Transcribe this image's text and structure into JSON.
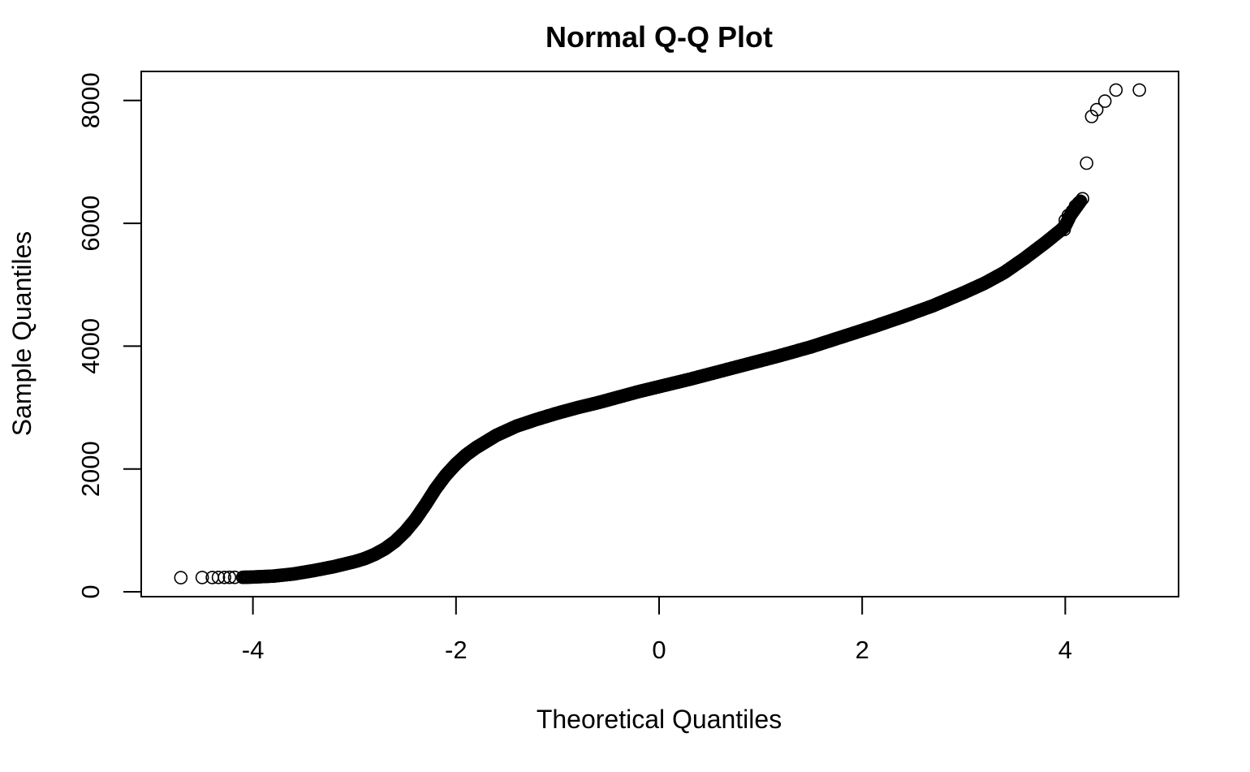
{
  "chart_data": {
    "type": "scatter",
    "title": "Normal Q-Q Plot",
    "xlabel": "Theoretical Quantiles",
    "ylabel": "Sample Quantiles",
    "xlim": [
      -5.1,
      5.1
    ],
    "ylim": [
      -70,
      8500
    ],
    "xticks": [
      -4,
      -2,
      0,
      2,
      4
    ],
    "xtick_labels": [
      "-4",
      "-2",
      "0",
      "2",
      "4"
    ],
    "yticks": [
      0,
      2000,
      4000,
      6000,
      8000
    ],
    "ytick_labels": [
      "0",
      "2000",
      "4000",
      "6000",
      "8000"
    ],
    "grid": false,
    "marker": "open-circle",
    "curve": [
      [
        -4.1,
        235
      ],
      [
        -4.0,
        240
      ],
      [
        -3.8,
        255
      ],
      [
        -3.6,
        290
      ],
      [
        -3.4,
        345
      ],
      [
        -3.2,
        410
      ],
      [
        -3.0,
        490
      ],
      [
        -2.9,
        540
      ],
      [
        -2.8,
        610
      ],
      [
        -2.7,
        700
      ],
      [
        -2.6,
        820
      ],
      [
        -2.5,
        980
      ],
      [
        -2.4,
        1180
      ],
      [
        -2.3,
        1420
      ],
      [
        -2.2,
        1680
      ],
      [
        -2.1,
        1900
      ],
      [
        -2.0,
        2080
      ],
      [
        -1.9,
        2230
      ],
      [
        -1.8,
        2350
      ],
      [
        -1.6,
        2550
      ],
      [
        -1.4,
        2700
      ],
      [
        -1.2,
        2810
      ],
      [
        -1.0,
        2910
      ],
      [
        -0.8,
        3000
      ],
      [
        -0.6,
        3080
      ],
      [
        -0.4,
        3170
      ],
      [
        -0.2,
        3260
      ],
      [
        0.0,
        3340
      ],
      [
        0.3,
        3460
      ],
      [
        0.6,
        3590
      ],
      [
        0.9,
        3720
      ],
      [
        1.2,
        3850
      ],
      [
        1.5,
        3990
      ],
      [
        1.8,
        4150
      ],
      [
        2.1,
        4310
      ],
      [
        2.4,
        4480
      ],
      [
        2.7,
        4660
      ],
      [
        3.0,
        4870
      ],
      [
        3.2,
        5020
      ],
      [
        3.4,
        5200
      ],
      [
        3.6,
        5430
      ],
      [
        3.8,
        5680
      ],
      [
        3.95,
        5880
      ],
      [
        4.0,
        5960
      ],
      [
        4.05,
        6130
      ],
      [
        4.15,
        6360
      ]
    ],
    "outliers": [
      [
        -4.71,
        230
      ],
      [
        -4.5,
        232
      ],
      [
        -4.4,
        233
      ],
      [
        -4.34,
        234
      ],
      [
        -4.28,
        234
      ],
      [
        -4.23,
        235
      ],
      [
        -4.18,
        235
      ],
      [
        3.99,
        5900
      ],
      [
        4.0,
        6050
      ],
      [
        4.03,
        6130
      ],
      [
        4.07,
        6200
      ],
      [
        4.1,
        6280
      ],
      [
        4.13,
        6330
      ],
      [
        4.17,
        6400
      ],
      [
        4.21,
        6980
      ],
      [
        4.26,
        7740
      ],
      [
        4.31,
        7850
      ],
      [
        4.39,
        7990
      ],
      [
        4.5,
        8170
      ],
      [
        4.73,
        8170
      ]
    ]
  }
}
